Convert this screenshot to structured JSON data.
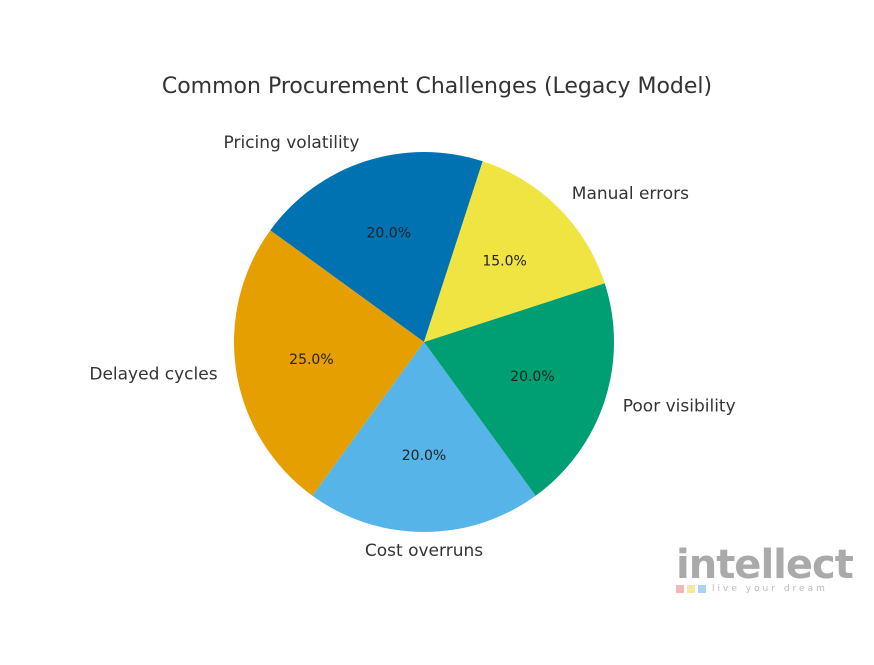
{
  "chart_data": {
    "type": "pie",
    "title": "Common Procurement Challenges (Legacy Model)",
    "start_angle_deg": 72,
    "direction": "counterclockwise",
    "slices": [
      {
        "label": "Pricing volatility",
        "value": 20.0,
        "pct_label": "20.0%",
        "color": "#0072B2"
      },
      {
        "label": "Delayed cycles",
        "value": 25.0,
        "pct_label": "25.0%",
        "color": "#E69F00"
      },
      {
        "label": "Cost overruns",
        "value": 20.0,
        "pct_label": "20.0%",
        "color": "#56B4E9"
      },
      {
        "label": "Poor visibility",
        "value": 20.0,
        "pct_label": "20.0%",
        "color": "#009E73"
      },
      {
        "label": "Manual errors",
        "value": 15.0,
        "pct_label": "15.0%",
        "color": "#F0E442"
      }
    ]
  },
  "logo": {
    "word": "intellect",
    "tagline": "live your dream",
    "colors": [
      "#F4B6B6",
      "#F7E7A0",
      "#A9D4F2"
    ]
  }
}
